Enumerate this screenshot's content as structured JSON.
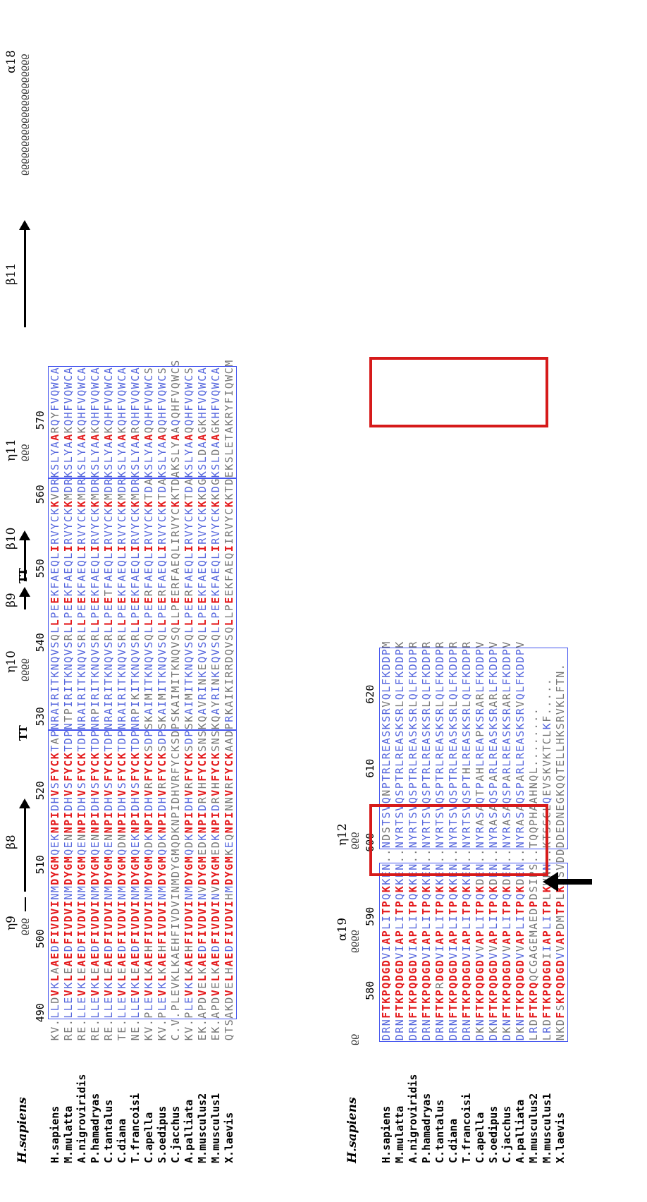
{
  "header_species": "H.sapiens",
  "species": [
    "H.sapiens",
    "M.mulatta",
    "A.nigroviridis",
    "P.hamadryas",
    "C.tantalus",
    "C.diana",
    "T.francoisi",
    "C.apella",
    "S.oedipus",
    "C.jacchus",
    "A.palliata",
    "M.musculus2",
    "M.musculus1",
    "X.laevis"
  ],
  "block1": {
    "numbers": [
      "490",
      "500",
      "510",
      "520",
      "530",
      "540",
      "550",
      "560",
      "570"
    ],
    "secondary_structure": [
      "η9",
      "β8",
      "TT",
      "η10",
      "β9",
      "TT",
      "β10",
      "η11",
      "β11",
      "α18"
    ],
    "rows": [
      "KV.LLDVKLAAEDFIVDVINMDYGMQEKNPIDHVSFYCKTAPNRAIRITKNQVSQLLPEEKFAEQLIRVYCKKVDRKSLYAARQYFVQWCA",
      "RE.LLEVKLEAEDFIVDVINMDYGMQENNPIDHVSFYCKTDPNTPIRITKNQVSRLLPEEKFAEQLIRVYCKKMDRKSLYAAKQHFVQWCA",
      "RE.LLEVKLEAEDFIVDVINMDYGMQENNPIDHVSFYCKTDPNRAIRITKNQVSRLLPEEKFAEQLIRVYCKKMDRKSLYAAKQHFVQWCA",
      "RE.LLEVKLEAEDFIVDVINMDYGMQENNPIDHVSFYCKTDPNRPIRITKNQVSRLLPEEKFAEQLIRVYCKKMDRKSLYAAKQHFVQWCA",
      "RE.LLEVKLEAEDFIVDVINMDYGMQENNPIDHVSFYCKTDPNRAIRITKNQVSRLLPEETFAEQLIRVYCKKMDRKSLYAAKQHFVQWCA",
      "TE.LLEVKLEAEDFIVDVINMDYGMQDNNPIDHVSFYCKTDPNRAIRITKNQVSRLLPEEKFAEQLIRVYCKKMDRKSLYAAKQHFVQWCA",
      "NE.LLEVKLEAEDFIVDVINMDYGMQEKNPIDHVSFYCKTDPNRPIKITKNQVSRLLPEEKFAEQLIRVYCKKMDRKSLYAARQHFVQWCA",
      "KV.PLEVKLKAEHFIVDVINMDYGMQDKNPIDHVRFYCKSDPSKAIMITKNQVSQLLPEERFAEQLIRVYCKKTDAKSLYAAQQHFVQWCS",
      "KV.PLEVKLKAEHFIVDVINMDYGMQDKNPIDHVRFYCKSDPSKAIMITKNQVSQLLPEERFAEQLIRVYCKKTDAKSLYAAQQHFVQWCS",
      "C.V.PLEVKLKAEHFIVDVINMDYGMQDKNPIDHVRFYCKSDPSKAIMITKNQVSQLLPEERFAEQLIRVYCKKTDAKSLYAAQQHFVQWCS",
      "KV.PLEVKLKAEHFIVDVINMDYGMQDKNPIDHVRFYCKSDPSKAIMITKNQVSQLLPEERFAEQLIRVYCKKTDAKSLYAAQQHFVQWCS",
      "EK.APDVELKAEDFIVDVINVDYGMEDKNPIDRVHFYCKSNSKQAVRINKEQVSQLLPEEKFAEQLIRVYCKKKDGKSLDAAGKHFVQWCA",
      "EK.APDVELKAEDFIVDVINVDYGMEDKNPIDRVHFYCKSNSKQAYRINKEQVSQLLPEEKFAEQLIRVYCKKKDGKSLDAAGKHFVQWCA",
      "QTSAKDVELHAEDFIVDVIHMDYGMKEQNPINNVRFYCKAADPRKAIKIRRDQVSQLLPEEKFAEQIIRVYCKKTDEKSLETAKRYFIQWCM"
    ]
  },
  "block2": {
    "numbers": [
      "580",
      "590",
      "600",
      "610",
      "620"
    ],
    "secondary_structure": [
      "α19",
      "η12"
    ],
    "rows": [
      "DRNFTKPQDGDVIAPLITPQKKEN..NDSTSVQNPTRLREASKSRVQLFKDDPM",
      "DRNFTKPQDGDVIAPLITPQKKEN..NYRTSVQSPTRLREASKSRLQLFKDDPK",
      "DRNFTKPQDGDVIAPLITPQKKEN..NYRTSVQSPTRLREASKSRLQLFKDDPR",
      "DRNFTKPQDGDVIAPLITPQKKEN..NYRTSVQSPTRLREASKSRLQLFKDDPR",
      "DRNFTKPRDGDVIAPLITPQKKEN..NYRTSVQSPTRLREASKSRLQLFKDDPR",
      "DRNFTKPQDGDVIAPLITPQKKEN..NYRTSVQSPTRLREASKSRLQLFKDDPR",
      "DRNFTKPQDGDVIAPLITPQKKEN..NYRTSVQSPTHLREASKSRLQLFKDDPR",
      "DKNFTKPQDGDVVAPLITPQKDEN..NYRASAQTPAHLREAPKSRARLFKDDPV",
      "DKNFTKPQDGDVVAPLITPQKDEN..NYRASAQSPARLREASKSRARLFKDDPV",
      "DKNFTKPQDGDVVAPLITPQKDEN..NYRASAQSPARLREASKSRARLFKDDPV",
      "DKNFTKPQDGDVVAPLITPQKDEN..NYRASAQSPARLREASKSRVQLFKDDPV",
      "LRDFTKPQQCGAGEMAEDPDSIPS..TQQPHAAHNQL........",
      "LRDFTKPQDGDIIAPLITPLKWNN..KTSSCLQEVSKVKTCLKF.....",
      "NKDFSKPQDGDVVAPDMTPLKASVDDDDEDNEGKQQTELLHKSRVKLFTN."
    ]
  },
  "colors": {
    "identical": "#e41a1c",
    "similar": "#5566dd",
    "box": "#4455ee",
    "highlight": "#d61a1a"
  }
}
